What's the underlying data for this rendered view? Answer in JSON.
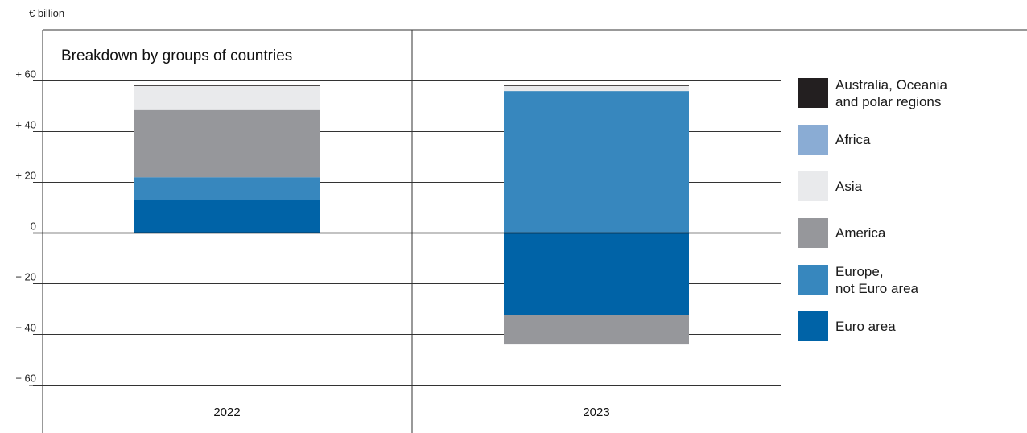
{
  "chart_data": {
    "type": "bar",
    "stacked": true,
    "unit_label": "€ billion",
    "title": "Breakdown by groups of countries",
    "categories": [
      "2022",
      "2023"
    ],
    "ylim": [
      -73,
      73
    ],
    "yticks": [
      60,
      40,
      20,
      0,
      -20,
      -40,
      -60
    ],
    "ytick_labels": [
      "+ 60",
      "+ 40",
      "+ 20",
      "0",
      "− 20",
      "− 40",
      "− 60"
    ],
    "grid": true,
    "legend_position": "right",
    "series": [
      {
        "name": "Euro area",
        "color": "#0063a7",
        "values": [
          13,
          -32.5
        ]
      },
      {
        "name": "Europe,\nnot Euro area",
        "color": "#3787be",
        "values": [
          9,
          56
        ]
      },
      {
        "name": "America",
        "color": "#96979b",
        "values": [
          26.5,
          -11.5
        ]
      },
      {
        "name": "Asia",
        "color": "#e9eaec",
        "values": [
          9.5,
          2
        ]
      },
      {
        "name": "Africa",
        "color": "#8aacd4",
        "values": [
          0,
          0
        ]
      },
      {
        "name": "Australia, Oceania\nand polar regions",
        "color": "#231f20",
        "values": [
          0.3,
          0.4
        ]
      }
    ]
  }
}
